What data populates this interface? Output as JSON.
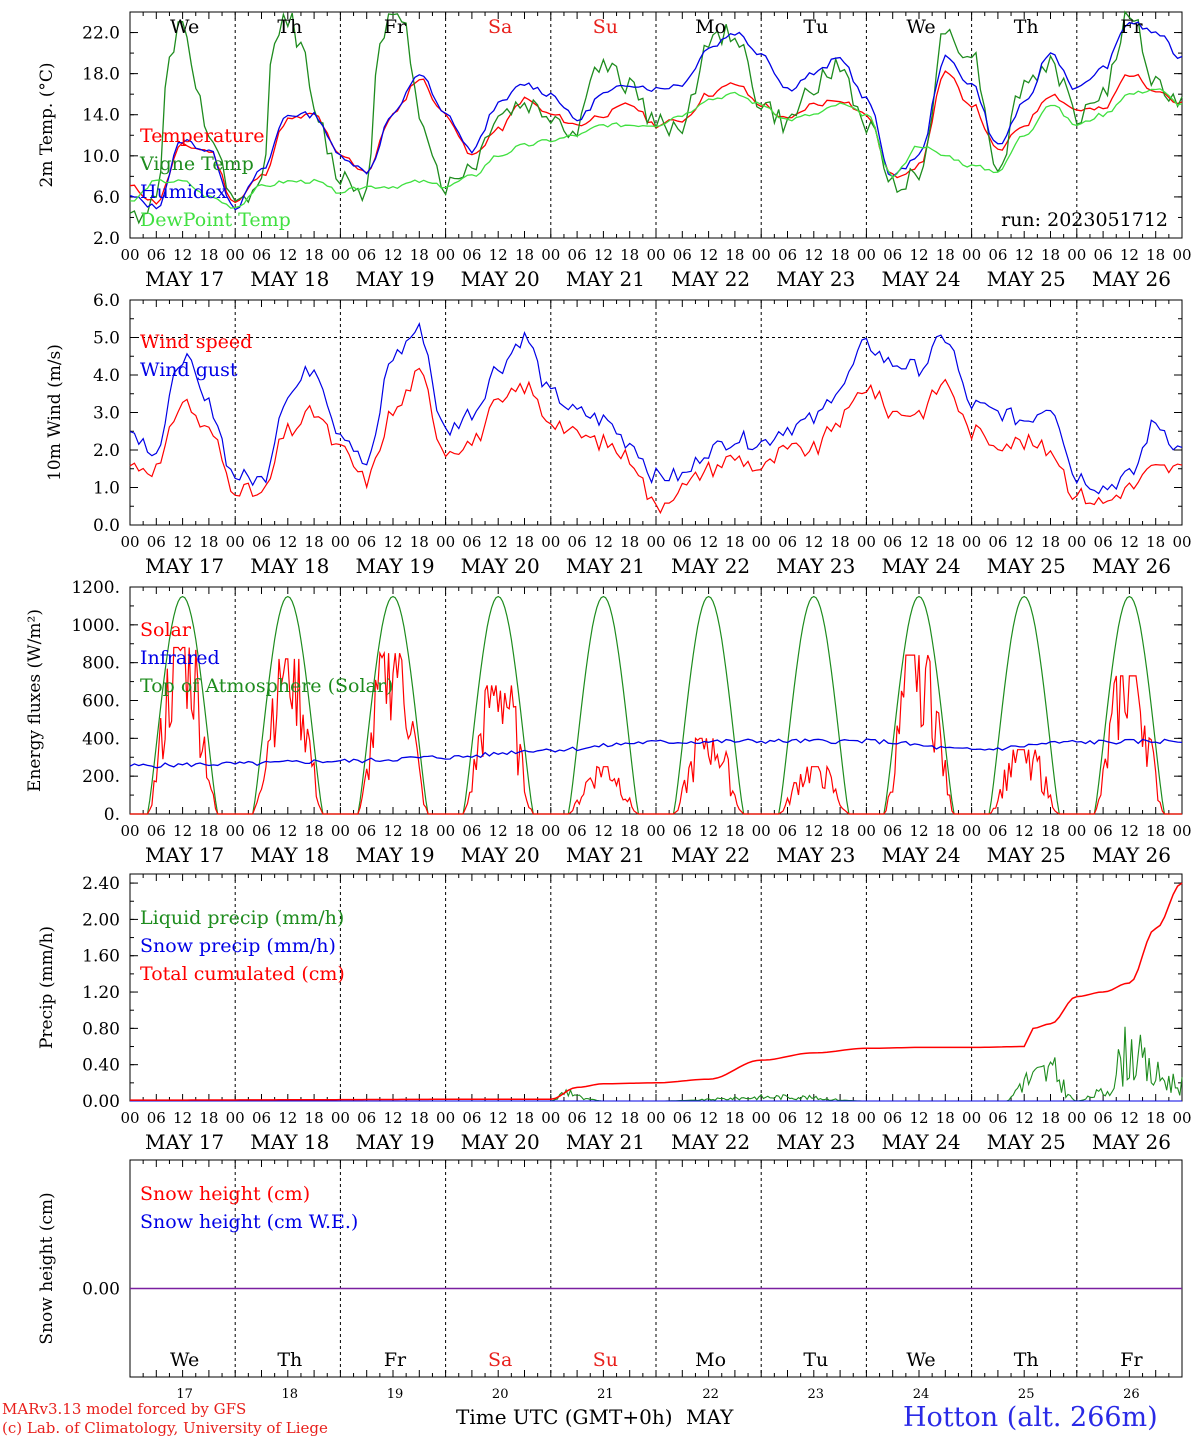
{
  "weekdays": [
    {
      "label": "We",
      "color": "#000000"
    },
    {
      "label": "Th",
      "color": "#000000"
    },
    {
      "label": "Fr",
      "color": "#000000"
    },
    {
      "label": "Sa",
      "color": "#e8201c"
    },
    {
      "label": "Su",
      "color": "#e8201c"
    },
    {
      "label": "Mo",
      "color": "#000000"
    },
    {
      "label": "Tu",
      "color": "#000000"
    },
    {
      "label": "We",
      "color": "#000000"
    },
    {
      "label": "Th",
      "color": "#000000"
    },
    {
      "label": "Fr",
      "color": "#000000"
    }
  ],
  "dates": [
    "MAY 17",
    "MAY 18",
    "MAY 19",
    "MAY 20",
    "MAY 21",
    "MAY 22",
    "MAY 23",
    "MAY 24",
    "MAY 25",
    "MAY 26"
  ],
  "hour_ticks": [
    "00",
    "06",
    "12",
    "18"
  ],
  "day_numbers": [
    "17",
    "18",
    "19",
    "20",
    "21",
    "22",
    "23",
    "24",
    "25",
    "26"
  ],
  "run_label": "run: 2023051712",
  "x_axis_label": "Time UTC (GMT+0h)",
  "month_label": "MAY",
  "station": "Hotton (alt. 266m)",
  "credit_1": "MARv3.13 model forced by GFS",
  "credit_2": "(c) Lab. of Climatology, University of Liege",
  "colors": {
    "red": "#ff0000",
    "green": "#1e8c1e",
    "blue": "#0000e6",
    "lightgreen": "#40e040",
    "purple": "#7a1fa0"
  },
  "chart_data": [
    {
      "type": "line",
      "ylabel": "2m Temp. (°C)",
      "ylim": [
        2,
        24
      ],
      "yticks": [
        "2.0",
        "6.0",
        "10.0",
        "14.0",
        "18.0",
        "22.0"
      ],
      "ytick_values": [
        2,
        6,
        10,
        14,
        18,
        22
      ],
      "x_unit": "hours since May 17 00 UTC",
      "series": [
        {
          "name": "Temperature",
          "color": "red",
          "x": [
            0,
            6,
            12,
            18,
            24,
            30,
            36,
            42,
            48,
            54,
            60,
            66,
            72,
            78,
            84,
            90,
            96,
            102,
            108,
            114,
            120,
            126,
            132,
            138,
            144,
            150,
            156,
            162,
            168,
            174,
            180,
            186,
            192,
            198,
            204,
            210,
            216,
            222,
            228,
            234,
            240
          ],
          "values": [
            7,
            5.5,
            11,
            10.5,
            5.5,
            8,
            13.5,
            14,
            10,
            8.5,
            14,
            17.5,
            14,
            10,
            12.5,
            15.5,
            14,
            13,
            14,
            15,
            13,
            13.5,
            16,
            17,
            15,
            13.5,
            15,
            15.5,
            14,
            8,
            9,
            18,
            15,
            10.5,
            13,
            16,
            14.5,
            14.5,
            18,
            16.5,
            15
          ]
        },
        {
          "name": "Vigne Temp",
          "color": "green",
          "x": [
            0,
            6,
            9,
            12,
            15,
            18,
            24,
            30,
            33,
            36,
            39,
            42,
            48,
            54,
            57,
            60,
            63,
            66,
            72,
            78,
            84,
            90,
            96,
            102,
            105,
            108,
            114,
            120,
            126,
            132,
            138,
            144,
            150,
            156,
            162,
            168,
            174,
            180,
            186,
            192,
            198,
            204,
            210,
            216,
            222,
            228,
            234,
            240
          ],
          "values": [
            4,
            5.5,
            20,
            23,
            16,
            12,
            5,
            7,
            22,
            23.5,
            21,
            14,
            8,
            6.5,
            22,
            23.5,
            22,
            14,
            7,
            9,
            14,
            15,
            14,
            12,
            18,
            18.5,
            17,
            13,
            13,
            21,
            22,
            15,
            13,
            17,
            18.5,
            13,
            7.5,
            8,
            22,
            20,
            9,
            17,
            19,
            14,
            16,
            24,
            17,
            15
          ]
        },
        {
          "name": "Humidex",
          "color": "blue",
          "x": [
            0,
            6,
            12,
            18,
            24,
            30,
            36,
            42,
            48,
            54,
            60,
            66,
            72,
            78,
            84,
            90,
            96,
            102,
            108,
            114,
            120,
            126,
            132,
            138,
            144,
            150,
            156,
            162,
            168,
            174,
            180,
            186,
            192,
            198,
            204,
            210,
            216,
            222,
            228,
            234,
            240
          ],
          "values": [
            6,
            5,
            11.5,
            10.5,
            5,
            8.5,
            14,
            14,
            10,
            8.5,
            14,
            18,
            14,
            10.5,
            15,
            17,
            16,
            13.5,
            16,
            17,
            16.5,
            17,
            20.5,
            22,
            20,
            16.5,
            18,
            19.5,
            15.5,
            8,
            10,
            19.5,
            17,
            11,
            15,
            20,
            16.5,
            18.5,
            23,
            22,
            19.5
          ]
        },
        {
          "name": "DewPoint Temp",
          "color": "lightgreen",
          "x": [
            0,
            6,
            12,
            18,
            24,
            30,
            36,
            42,
            48,
            54,
            60,
            66,
            72,
            78,
            84,
            90,
            96,
            102,
            108,
            114,
            120,
            126,
            132,
            138,
            144,
            150,
            156,
            162,
            168,
            174,
            180,
            186,
            192,
            198,
            204,
            210,
            216,
            222,
            228,
            234,
            240
          ],
          "values": [
            5.5,
            7.5,
            7.5,
            6,
            5,
            7,
            7.5,
            7.5,
            6.5,
            7,
            7,
            7.5,
            7,
            8,
            10,
            11,
            11.5,
            12,
            13,
            13,
            13,
            14,
            15.5,
            16,
            15,
            13.5,
            14,
            15,
            14,
            8,
            11,
            10,
            9,
            8.5,
            12,
            15,
            13,
            14,
            16,
            16.5,
            15
          ]
        }
      ],
      "annotations": [
        "Temperature",
        "Vigne Temp",
        "Humidex",
        "DewPoint Temp"
      ]
    },
    {
      "type": "line",
      "ylabel": "10m Wind (m/s)",
      "ylim": [
        0,
        6
      ],
      "yticks": [
        "0.0",
        "1.0",
        "2.0",
        "3.0",
        "4.0",
        "5.0",
        "6.0"
      ],
      "ytick_values": [
        0,
        1,
        2,
        3,
        4,
        5,
        6
      ],
      "series": [
        {
          "name": "Wind speed",
          "color": "red",
          "x": [
            0,
            6,
            12,
            18,
            24,
            30,
            36,
            42,
            48,
            54,
            60,
            66,
            72,
            78,
            84,
            90,
            96,
            102,
            108,
            114,
            120,
            126,
            132,
            138,
            144,
            150,
            156,
            162,
            168,
            174,
            180,
            186,
            192,
            198,
            204,
            210,
            216,
            222,
            228,
            234,
            240
          ],
          "values": [
            1.6,
            1.5,
            3.3,
            2.5,
            1,
            0.8,
            2.5,
            3,
            2,
            1.2,
            3,
            4,
            2,
            2.2,
            3.2,
            3.7,
            2.8,
            2.4,
            2.2,
            1.8,
            0.5,
            1,
            1.5,
            1.8,
            1.5,
            2,
            2,
            2.8,
            3.7,
            3,
            3,
            3.8,
            2.5,
            2.2,
            2.2,
            2,
            0.8,
            0.6,
            1,
            1.5,
            1.5
          ]
        },
        {
          "name": "Wind gust",
          "color": "blue",
          "x": [
            0,
            6,
            12,
            18,
            24,
            30,
            36,
            42,
            48,
            54,
            60,
            66,
            72,
            78,
            84,
            90,
            96,
            102,
            108,
            114,
            120,
            126,
            132,
            138,
            144,
            150,
            156,
            162,
            168,
            174,
            180,
            186,
            192,
            198,
            204,
            210,
            216,
            222,
            228,
            234,
            240
          ],
          "values": [
            2.5,
            2,
            4.5,
            3.2,
            1.3,
            1.2,
            3.5,
            4.2,
            2.5,
            1.6,
            4.5,
            5.2,
            2.5,
            3,
            4.2,
            5,
            3.5,
            3,
            2.8,
            2.2,
            1.3,
            1.3,
            2,
            2.3,
            2.2,
            2.6,
            2.8,
            3.7,
            4.8,
            4.3,
            4.2,
            5,
            3.2,
            3,
            2.8,
            3.2,
            1.3,
            1,
            1.3,
            2.7,
            2
          ]
        }
      ],
      "reference_line": 5,
      "annotations": [
        "Wind speed",
        "Wind gust"
      ]
    },
    {
      "type": "line",
      "ylabel": "Energy fluxes (W/m²)",
      "ylim": [
        0,
        1200
      ],
      "yticks": [
        "0.",
        "200.",
        "400.",
        "600.",
        "800.",
        "1000.",
        "1200."
      ],
      "ytick_values": [
        0,
        200,
        400,
        600,
        800,
        1000,
        1200
      ],
      "series": [
        {
          "name": "Solar",
          "color": "red",
          "day_peaks": [
            880,
            820,
            850,
            680,
            250,
            400,
            250,
            840,
            340,
            730
          ]
        },
        {
          "name": "Infrared",
          "color": "blue",
          "x": [
            0,
            24,
            48,
            72,
            96,
            120,
            144,
            168,
            192,
            216,
            240
          ],
          "values": [
            255,
            265,
            280,
            300,
            340,
            380,
            385,
            385,
            340,
            380,
            385
          ]
        },
        {
          "name": "Top of Atmosphere (Solar)",
          "color": "green",
          "peak": 1150
        }
      ],
      "annotations": [
        "Solar",
        "Infrared",
        "Top of Atmosphere (Solar)"
      ]
    },
    {
      "type": "line",
      "ylabel": "Precip (mm/h)",
      "ylim": [
        0,
        2.5
      ],
      "yticks": [
        "0.00",
        "0.40",
        "0.80",
        "1.20",
        "1.60",
        "2.00",
        "2.40"
      ],
      "ytick_values": [
        0,
        0.4,
        0.8,
        1.2,
        1.6,
        2,
        2.4
      ],
      "series": [
        {
          "name": "Liquid precip (mm/h)",
          "color": "green",
          "x": [
            0,
            96,
            100,
            104,
            108,
            120,
            150,
            168,
            200,
            204,
            210,
            216,
            222,
            228,
            234,
            240
          ],
          "values": [
            0,
            0,
            0.12,
            0.02,
            0,
            0,
            0.05,
            0,
            0,
            0.25,
            0.35,
            0,
            0.1,
            0.6,
            0.3,
            0.2
          ]
        },
        {
          "name": "Snow precip (mm/h)",
          "color": "blue",
          "x": [
            0,
            240
          ],
          "values": [
            0,
            0
          ]
        },
        {
          "name": "Total cumulated (cm)",
          "color": "red",
          "x": [
            0,
            96,
            102,
            108,
            120,
            132,
            144,
            156,
            168,
            180,
            192,
            204,
            206,
            210,
            216,
            222,
            228,
            234,
            240
          ],
          "values": [
            0.01,
            0.02,
            0.15,
            0.19,
            0.2,
            0.24,
            0.45,
            0.53,
            0.58,
            0.59,
            0.59,
            0.6,
            0.8,
            0.85,
            1.15,
            1.2,
            1.3,
            1.9,
            2.4
          ]
        }
      ],
      "annotations": [
        "Liquid precip (mm/h)",
        "Snow precip (mm/h)",
        "Total cumulated (cm)"
      ]
    },
    {
      "type": "line",
      "ylabel": "Snow height (cm)",
      "yticks": [
        "0.00"
      ],
      "series": [
        {
          "name": "Snow height (cm)",
          "color": "red",
          "x": [
            0,
            240
          ],
          "values": [
            0,
            0
          ]
        },
        {
          "name": "Snow height (cm W.E.)",
          "color": "blue",
          "x": [
            0,
            240
          ],
          "values": [
            0,
            0
          ]
        }
      ],
      "annotations": [
        "Snow height (cm)",
        "Snow height (cm W.E.)"
      ]
    }
  ]
}
